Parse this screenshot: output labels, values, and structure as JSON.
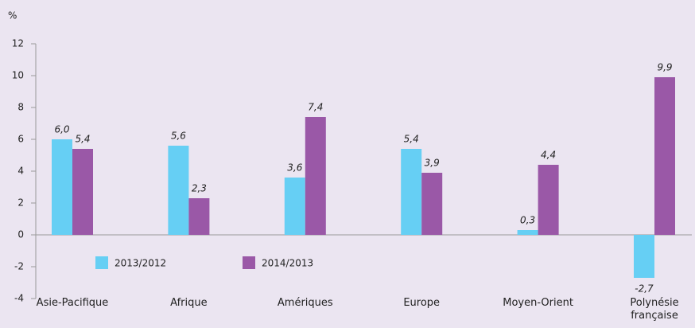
{
  "chart_data": {
    "type": "bar",
    "y_unit": "%",
    "categories": [
      "Asie-Pacifique",
      "Afrique",
      "Amériques",
      "Europe",
      "Moyen-Orient",
      "Polynésie française"
    ],
    "series": [
      {
        "name": "2013/2012",
        "color": "#66cff4",
        "values": [
          6.0,
          5.6,
          3.6,
          5.4,
          0.3,
          -2.7
        ],
        "value_labels": [
          "6,0",
          "5,6",
          "3,6",
          "5,4",
          "0,3",
          "-2,7"
        ]
      },
      {
        "name": "2014/2013",
        "color": "#9a58a7",
        "values": [
          5.4,
          2.3,
          7.4,
          3.9,
          4.4,
          9.9
        ],
        "value_labels": [
          "5,4",
          "2,3",
          "7,4",
          "3,9",
          "4,4",
          "9,9"
        ]
      }
    ],
    "ylim": [
      -4,
      12
    ],
    "yticks": [
      -4,
      -2,
      0,
      2,
      4,
      6,
      8,
      10,
      12
    ]
  }
}
